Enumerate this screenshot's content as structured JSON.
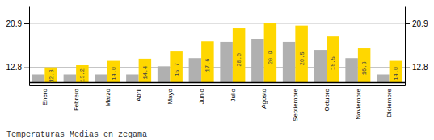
{
  "chart_data": {
    "type": "bar",
    "title": "Temperaturas Medias en zegama",
    "categories": [
      "Enero",
      "Febrero",
      "Marzo",
      "Abril",
      "Mayo",
      "Junio",
      "Julio",
      "Agosto",
      "Septiembre",
      "Octubre",
      "Noviembre",
      "Diciembre"
    ],
    "series": [
      {
        "color": "#B0B0B0",
        "values": [
          11.5,
          11.5,
          11.5,
          11.5,
          13.0,
          14.5,
          17.5,
          18.0,
          17.5,
          16.0,
          14.5,
          11.5
        ]
      },
      {
        "color": "#FFD700",
        "values": [
          12.8,
          13.2,
          14.0,
          14.4,
          15.7,
          17.6,
          20.0,
          20.9,
          20.5,
          18.5,
          16.3,
          14.0
        ],
        "value_labels": [
          "12.8",
          "13.2",
          "14.0",
          "14.4",
          "15.7",
          "17.6",
          "20.0",
          "20.9",
          "20.5",
          "18.5",
          "16.3",
          "14.0"
        ],
        "data_labels": true
      }
    ],
    "baseline": 10.0,
    "ylim": [
      9.5,
      24.0
    ],
    "yticks": [
      12.8,
      20.9
    ],
    "y2lim": [
      9.5,
      24.0
    ],
    "y2ticks": [
      12.8,
      20.9
    ],
    "grid": true
  }
}
